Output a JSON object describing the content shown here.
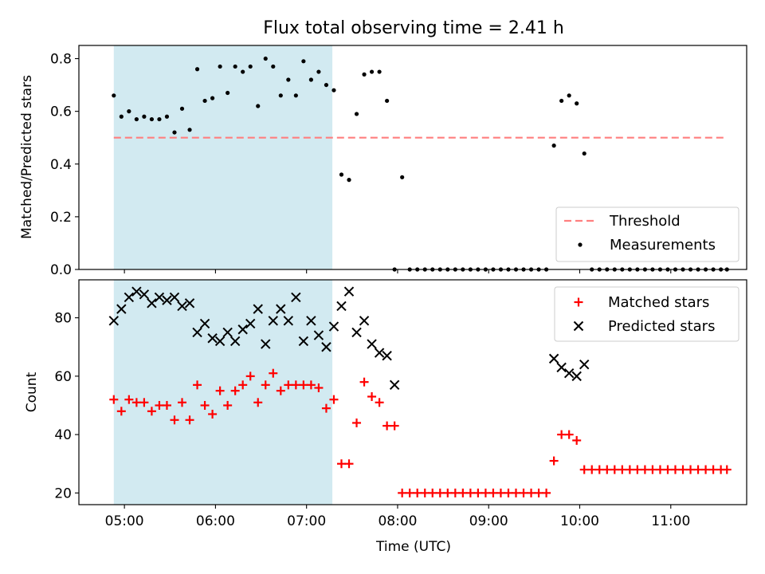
{
  "title": "Flux total observing time = 2.41 h",
  "colors": {
    "shade": "#add8e6",
    "threshold": "#ff7f7f",
    "measurements": "#000000",
    "matched": "#ff0000",
    "predicted": "#000000"
  },
  "chart_data": [
    {
      "type": "scatter",
      "ylabel": "Matched/Predicted stars",
      "ylim": [
        0,
        0.85
      ],
      "y_ticks": [
        0.0,
        0.2,
        0.4,
        0.6,
        0.8
      ],
      "y_tick_labels": [
        "0.0",
        "0.2",
        "0.4",
        "0.6",
        "0.8"
      ],
      "legend_position": "lower-right",
      "shaded_interval": [
        "04:53",
        "07:17"
      ],
      "threshold": {
        "name": "Threshold",
        "value": 0.5,
        "x_range": [
          "04:53",
          "11:37"
        ],
        "style": "dashed"
      },
      "series": [
        {
          "name": "Measurements",
          "marker": "dot",
          "x": [
            "04:53",
            "04:58",
            "05:03",
            "05:08",
            "05:13",
            "05:18",
            "05:23",
            "05:28",
            "05:33",
            "05:38",
            "05:43",
            "05:48",
            "05:53",
            "05:58",
            "06:03",
            "06:08",
            "06:13",
            "06:18",
            "06:23",
            "06:28",
            "06:33",
            "06:38",
            "06:43",
            "06:48",
            "06:53",
            "06:58",
            "07:03",
            "07:08",
            "07:13",
            "07:18",
            "07:23",
            "07:28",
            "07:33",
            "07:38",
            "07:43",
            "07:48",
            "07:53",
            "07:58",
            "08:03",
            "08:08",
            "08:13",
            "08:18",
            "08:23",
            "08:28",
            "08:33",
            "08:38",
            "08:43",
            "08:48",
            "08:53",
            "08:58",
            "09:03",
            "09:08",
            "09:13",
            "09:18",
            "09:23",
            "09:28",
            "09:33",
            "09:38",
            "09:43",
            "09:48",
            "09:53",
            "09:58",
            "10:03",
            "10:08",
            "10:13",
            "10:18",
            "10:23",
            "10:28",
            "10:33",
            "10:38",
            "10:43",
            "10:48",
            "10:53",
            "10:58",
            "11:03",
            "11:08",
            "11:13",
            "11:18",
            "11:23",
            "11:28",
            "11:33",
            "11:37"
          ],
          "y": [
            0.66,
            0.58,
            0.6,
            0.57,
            0.58,
            0.57,
            0.57,
            0.58,
            0.52,
            0.61,
            0.53,
            0.76,
            0.64,
            0.65,
            0.77,
            0.67,
            0.77,
            0.75,
            0.77,
            0.62,
            0.8,
            0.77,
            0.66,
            0.72,
            0.66,
            0.79,
            0.72,
            0.75,
            0.7,
            0.68,
            0.36,
            0.34,
            0.59,
            0.74,
            0.75,
            0.75,
            0.64,
            0.0,
            0.35,
            0.0,
            0.0,
            0.0,
            0.0,
            0.0,
            0.0,
            0.0,
            0.0,
            0.0,
            0.0,
            0.0,
            0.0,
            0.0,
            0.0,
            0.0,
            0.0,
            0.0,
            0.0,
            0.0,
            0.47,
            0.64,
            0.66,
            0.63,
            0.44,
            0.0,
            0.0,
            0.0,
            0.0,
            0.0,
            0.0,
            0.0,
            0.0,
            0.0,
            0.0,
            0.0,
            0.0,
            0.0,
            0.0,
            0.0,
            0.0,
            0.0,
            0.0,
            0.0
          ]
        }
      ]
    },
    {
      "type": "scatter",
      "xlabel": "Time (UTC)",
      "ylabel": "Count",
      "ylim": [
        16,
        93
      ],
      "y_ticks": [
        20,
        40,
        60,
        80
      ],
      "y_tick_labels": [
        "20",
        "40",
        "60",
        "80"
      ],
      "xlim": [
        "04:30",
        "11:50"
      ],
      "x_ticks": [
        "05:00",
        "06:00",
        "07:00",
        "08:00",
        "09:00",
        "10:00",
        "11:00"
      ],
      "legend_position": "upper-right",
      "shaded_interval": [
        "04:53",
        "07:17"
      ],
      "series": [
        {
          "name": "Matched stars",
          "marker": "plus",
          "x": [
            "04:53",
            "04:58",
            "05:03",
            "05:08",
            "05:13",
            "05:18",
            "05:23",
            "05:28",
            "05:33",
            "05:38",
            "05:43",
            "05:48",
            "05:53",
            "05:58",
            "06:03",
            "06:08",
            "06:13",
            "06:18",
            "06:23",
            "06:28",
            "06:33",
            "06:38",
            "06:43",
            "06:48",
            "06:53",
            "06:58",
            "07:03",
            "07:08",
            "07:13",
            "07:18",
            "07:23",
            "07:28",
            "07:33",
            "07:38",
            "07:43",
            "07:48",
            "07:53",
            "07:58",
            "08:03",
            "08:08",
            "08:13",
            "08:18",
            "08:23",
            "08:28",
            "08:33",
            "08:38",
            "08:43",
            "08:48",
            "08:53",
            "08:58",
            "09:03",
            "09:08",
            "09:13",
            "09:18",
            "09:23",
            "09:28",
            "09:33",
            "09:38",
            "09:43",
            "09:48",
            "09:53",
            "09:58",
            "10:03",
            "10:08",
            "10:13",
            "10:18",
            "10:23",
            "10:28",
            "10:33",
            "10:38",
            "10:43",
            "10:48",
            "10:53",
            "10:58",
            "11:03",
            "11:08",
            "11:13",
            "11:18",
            "11:23",
            "11:28",
            "11:33",
            "11:37"
          ],
          "y": [
            52,
            48,
            52,
            51,
            51,
            48,
            50,
            50,
            45,
            51,
            45,
            57,
            50,
            47,
            55,
            50,
            55,
            57,
            60,
            51,
            57,
            61,
            55,
            57,
            57,
            57,
            57,
            56,
            49,
            52,
            30,
            30,
            44,
            58,
            53,
            51,
            43,
            43,
            20,
            20,
            20,
            20,
            20,
            20,
            20,
            20,
            20,
            20,
            20,
            20,
            20,
            20,
            20,
            20,
            20,
            20,
            20,
            20,
            31,
            40,
            40,
            38,
            28,
            28,
            28,
            28,
            28,
            28,
            28,
            28,
            28,
            28,
            28,
            28,
            28,
            28,
            28,
            28,
            28,
            28,
            28,
            28
          ]
        },
        {
          "name": "Predicted stars",
          "marker": "x",
          "x": [
            "04:53",
            "04:58",
            "05:03",
            "05:08",
            "05:13",
            "05:18",
            "05:23",
            "05:28",
            "05:33",
            "05:38",
            "05:43",
            "05:48",
            "05:53",
            "05:58",
            "06:03",
            "06:08",
            "06:13",
            "06:18",
            "06:23",
            "06:28",
            "06:33",
            "06:38",
            "06:43",
            "06:48",
            "06:53",
            "06:58",
            "07:03",
            "07:08",
            "07:13",
            "07:18",
            "07:23",
            "07:28",
            "07:33",
            "07:38",
            "07:43",
            "07:48",
            "07:53",
            "07:58",
            "09:43",
            "09:48",
            "09:53",
            "09:58",
            "10:03"
          ],
          "y": [
            79,
            83,
            87,
            89,
            88,
            85,
            87,
            86,
            87,
            84,
            85,
            75,
            78,
            73,
            72,
            75,
            72,
            76,
            78,
            83,
            71,
            79,
            83,
            79,
            87,
            72,
            79,
            74,
            70,
            77,
            84,
            89,
            75,
            79,
            71,
            68,
            67,
            57,
            66,
            63,
            61,
            60,
            64
          ]
        }
      ]
    }
  ]
}
